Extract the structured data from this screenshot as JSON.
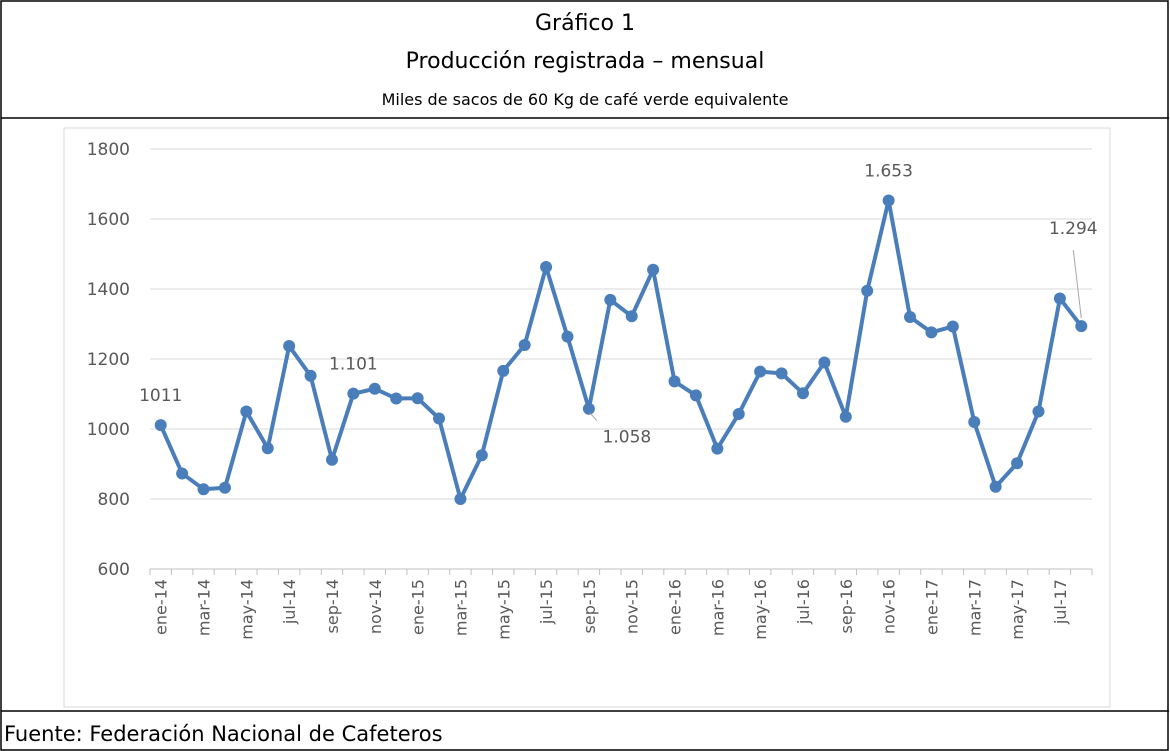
{
  "header": {
    "title": "Gráfico 1",
    "subtitle": "Producción registrada – mensual",
    "note": "Miles de sacos de 60 Kg de café verde equivalente"
  },
  "chart_data": {
    "type": "line",
    "categories": [
      "ene-14",
      null,
      "mar-14",
      null,
      "may-14",
      null,
      "jul-14",
      null,
      "sep-14",
      null,
      "nov-14",
      null,
      "ene-15",
      null,
      "mar-15",
      null,
      "may-15",
      null,
      "jul-15",
      null,
      "sep-15",
      null,
      "nov-15",
      null,
      "ene-16",
      null,
      "mar-16",
      null,
      "may-16",
      null,
      "jul-16",
      null,
      "sep-16",
      null,
      "nov-16",
      null,
      "ene-17",
      null,
      "mar-17",
      null,
      "may-17",
      null,
      "jul-17",
      null
    ],
    "series": [
      {
        "color": "#4a7ebb",
        "values": [
          1011,
          873,
          828,
          832,
          1050,
          945,
          1237,
          1152,
          912,
          1101,
          1115,
          1087,
          1088,
          1030,
          800,
          925,
          1166,
          1240,
          1463,
          1264,
          1058,
          1369,
          1322,
          1455,
          1136,
          1096,
          944,
          1043,
          1164,
          1159,
          1102,
          1190,
          1035,
          1395,
          1653,
          1320,
          1276,
          1293,
          1020,
          835,
          902,
          1050,
          1373,
          1294
        ],
        "value_labels": [
          "1011",
          null,
          null,
          null,
          null,
          null,
          null,
          null,
          null,
          "1.101",
          null,
          null,
          null,
          null,
          null,
          null,
          null,
          null,
          null,
          null,
          "1.058",
          null,
          null,
          null,
          null,
          null,
          null,
          null,
          null,
          null,
          null,
          null,
          null,
          null,
          "1.653",
          null,
          null,
          null,
          null,
          null,
          null,
          null,
          null,
          "1.294"
        ]
      }
    ],
    "ylim": [
      600,
      1800
    ],
    "yticks": [
      600,
      800,
      1000,
      1200,
      1400,
      1600,
      1800
    ],
    "grid": true
  },
  "footer": {
    "source": "Fuente: Federación Nacional de Cafeteros"
  }
}
